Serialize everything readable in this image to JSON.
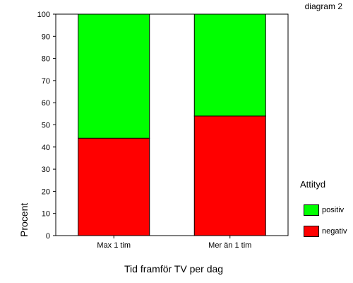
{
  "caption": "diagram 2",
  "chart_data": {
    "type": "bar",
    "stacked": true,
    "categories": [
      "Max 1 tim",
      "Mer än 1 tim"
    ],
    "series": [
      {
        "name": "negativ",
        "color": "#ff0000",
        "values": [
          44,
          54
        ]
      },
      {
        "name": "positiv",
        "color": "#00ff00",
        "values": [
          56,
          46
        ]
      }
    ],
    "xlabel": "Tid framför TV per dag",
    "ylabel": "Procent",
    "ylim": [
      0,
      100
    ],
    "yticks": [
      0,
      10,
      20,
      30,
      40,
      50,
      60,
      70,
      80,
      90,
      100
    ],
    "legend_title": "Attityd",
    "legend_placement": "right",
    "grid": false
  }
}
